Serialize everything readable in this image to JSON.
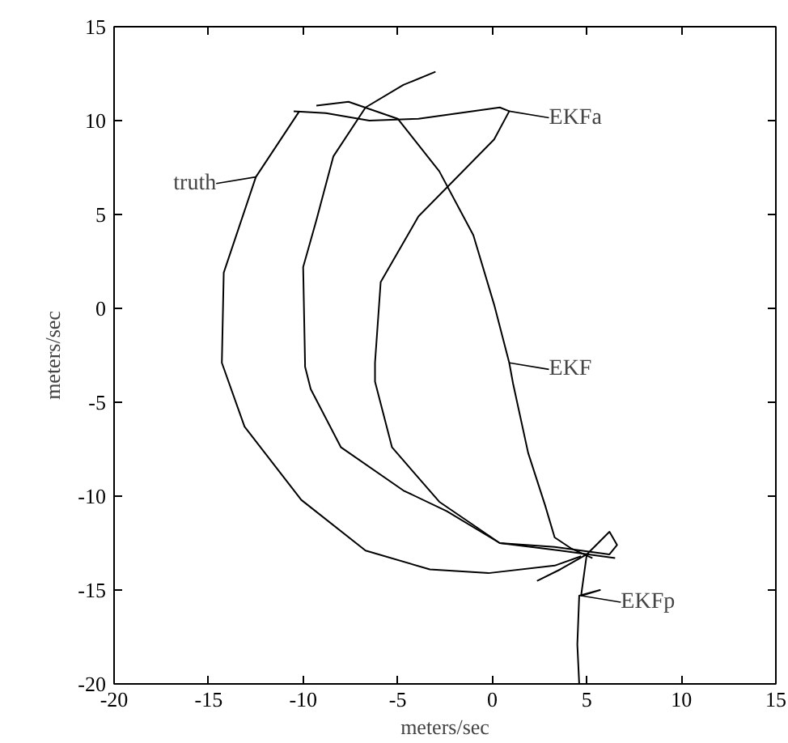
{
  "chart_data": {
    "type": "line",
    "xlabel": "meters/sec",
    "ylabel": "meters/sec",
    "xlim": [
      -20,
      15
    ],
    "ylim": [
      -20,
      15
    ],
    "xticks": [
      -20,
      -15,
      -10,
      -5,
      0,
      5,
      10,
      15
    ],
    "yticks": [
      -20,
      -15,
      -10,
      -5,
      0,
      5,
      10,
      15
    ],
    "grid": false,
    "legend": "right",
    "marker": "none",
    "line_style": "solid",
    "series": [
      {
        "name": "truth",
        "color": "#000000",
        "x": [
          -10.2,
          -12.5,
          -14.2,
          -14.3,
          -13.1,
          -10.1,
          -6.7,
          -3.3,
          -0.2,
          3.3,
          4.7
        ],
        "values": [
          10.5,
          7,
          1.9,
          -2.9,
          -6.3,
          -10.2,
          -12.9,
          -13.9,
          -14.1,
          -13.7,
          -13.2
        ]
      },
      {
        "name": "EKF",
        "color": "#000000",
        "x": [
          -9.3,
          -7.6,
          -5,
          -2.8,
          -1,
          0.1,
          0.9,
          1.1,
          1.9,
          2.8,
          3.3,
          4.2,
          5.3
        ],
        "values": [
          10.8,
          11,
          10.1,
          7.3,
          3.9,
          0.2,
          -2.9,
          -4,
          -7.7,
          -10.5,
          -12.2,
          -12.8,
          -13.3
        ]
      },
      {
        "name": "EKFa",
        "color": "#000000",
        "x": [
          -10.5,
          -8.8,
          -6.5,
          -3.9,
          0.4,
          0.9,
          0.1,
          -3.9,
          -5.9,
          -6.2,
          -6.2,
          -5.3,
          -2.8,
          0.4,
          3.6,
          6.5
        ],
        "values": [
          10.5,
          10.4,
          10,
          10.1,
          10.7,
          10.5,
          9,
          4.9,
          1.4,
          -2.9,
          -3.9,
          -7.4,
          -10.3,
          -12.5,
          -12.9,
          -13.3
        ]
      },
      {
        "name": "EKFp",
        "color": "#000000",
        "x": [
          -3,
          -4.7,
          -6.7,
          -8.4,
          -9.3,
          -10,
          -9.9,
          -9.9,
          -9.6,
          -8,
          -4.7,
          -2.4,
          0.4,
          3.3,
          6.2,
          6.6,
          6.2,
          5,
          3.6,
          2.4,
          3.6,
          5,
          4.7,
          5.7,
          4.6,
          4.5,
          4.6
        ],
        "values": [
          12.6,
          11.9,
          10.7,
          8.1,
          4.7,
          2.2,
          -2.9,
          -3.1,
          -4.3,
          -7.4,
          -9.7,
          -10.8,
          -12.5,
          -12.7,
          -13.1,
          -12.6,
          -11.9,
          -13.1,
          -13.9,
          -14.5,
          -13.9,
          -13.1,
          -15.3,
          -15,
          -15.3,
          -17.9,
          -20
        ]
      }
    ]
  }
}
